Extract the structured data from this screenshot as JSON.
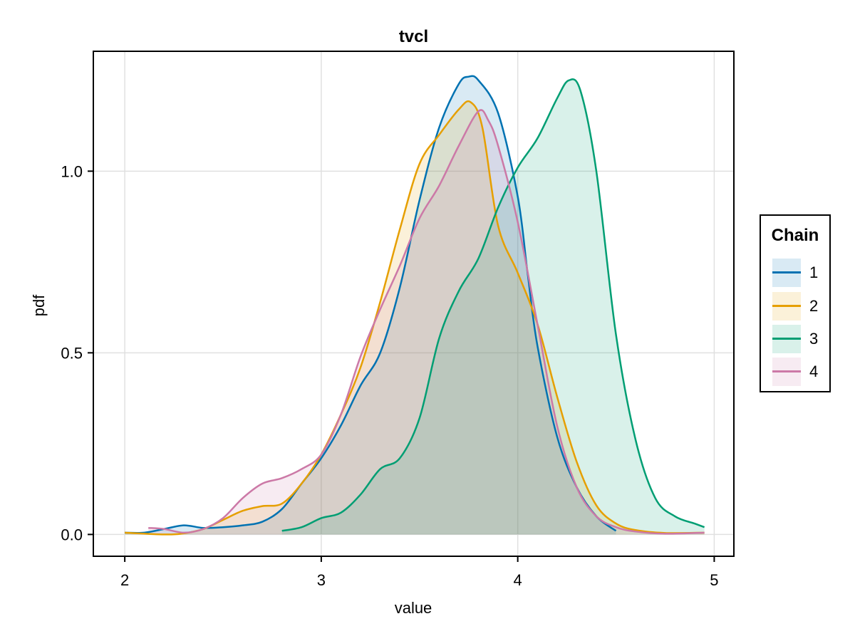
{
  "chart_data": {
    "type": "area",
    "title": "tvcl",
    "xlabel": "value",
    "ylabel": "pdf",
    "xlim": [
      1.84,
      5.1
    ],
    "ylim": [
      -0.06,
      1.33
    ],
    "x_ticks": [
      "2",
      "3",
      "4",
      "5"
    ],
    "y_ticks": [
      "0.0",
      "0.5",
      "1.0"
    ],
    "grid": true,
    "legend": {
      "title": "Chain",
      "position": "right",
      "entries": [
        "1",
        "2",
        "3",
        "4"
      ]
    },
    "series": [
      {
        "name": "1",
        "color": "#0072b2",
        "fill": "rgba(0,114,178,0.15)",
        "points": [
          [
            2.0,
            0.005
          ],
          [
            2.1,
            0.005
          ],
          [
            2.2,
            0.015
          ],
          [
            2.3,
            0.025
          ],
          [
            2.4,
            0.018
          ],
          [
            2.5,
            0.02
          ],
          [
            2.6,
            0.025
          ],
          [
            2.7,
            0.035
          ],
          [
            2.8,
            0.07
          ],
          [
            2.9,
            0.14
          ],
          [
            3.0,
            0.21
          ],
          [
            3.1,
            0.3
          ],
          [
            3.2,
            0.41
          ],
          [
            3.3,
            0.5
          ],
          [
            3.4,
            0.68
          ],
          [
            3.5,
            0.92
          ],
          [
            3.6,
            1.12
          ],
          [
            3.7,
            1.24
          ],
          [
            3.75,
            1.26
          ],
          [
            3.8,
            1.25
          ],
          [
            3.9,
            1.16
          ],
          [
            4.0,
            0.93
          ],
          [
            4.05,
            0.72
          ],
          [
            4.1,
            0.52
          ],
          [
            4.2,
            0.27
          ],
          [
            4.3,
            0.13
          ],
          [
            4.4,
            0.05
          ],
          [
            4.5,
            0.01
          ]
        ]
      },
      {
        "name": "2",
        "color": "#e69f00",
        "fill": "rgba(230,159,0,0.15)",
        "points": [
          [
            2.0,
            0.005
          ],
          [
            2.2,
            0.0
          ],
          [
            2.3,
            0.003
          ],
          [
            2.4,
            0.015
          ],
          [
            2.5,
            0.04
          ],
          [
            2.6,
            0.065
          ],
          [
            2.7,
            0.078
          ],
          [
            2.8,
            0.085
          ],
          [
            2.9,
            0.14
          ],
          [
            3.0,
            0.22
          ],
          [
            3.1,
            0.33
          ],
          [
            3.2,
            0.46
          ],
          [
            3.3,
            0.64
          ],
          [
            3.4,
            0.84
          ],
          [
            3.5,
            1.02
          ],
          [
            3.6,
            1.1
          ],
          [
            3.7,
            1.17
          ],
          [
            3.76,
            1.19
          ],
          [
            3.82,
            1.12
          ],
          [
            3.9,
            0.85
          ],
          [
            4.0,
            0.72
          ],
          [
            4.1,
            0.58
          ],
          [
            4.2,
            0.38
          ],
          [
            4.3,
            0.2
          ],
          [
            4.4,
            0.08
          ],
          [
            4.5,
            0.03
          ],
          [
            4.6,
            0.012
          ],
          [
            4.75,
            0.004
          ],
          [
            4.95,
            0.005
          ]
        ]
      },
      {
        "name": "3",
        "color": "#009e73",
        "fill": "rgba(0,158,115,0.15)",
        "points": [
          [
            2.8,
            0.01
          ],
          [
            2.9,
            0.02
          ],
          [
            3.0,
            0.045
          ],
          [
            3.1,
            0.06
          ],
          [
            3.2,
            0.11
          ],
          [
            3.3,
            0.18
          ],
          [
            3.4,
            0.21
          ],
          [
            3.5,
            0.32
          ],
          [
            3.6,
            0.54
          ],
          [
            3.7,
            0.67
          ],
          [
            3.8,
            0.76
          ],
          [
            3.9,
            0.9
          ],
          [
            4.0,
            1.01
          ],
          [
            4.1,
            1.09
          ],
          [
            4.2,
            1.2
          ],
          [
            4.26,
            1.25
          ],
          [
            4.32,
            1.22
          ],
          [
            4.4,
            1.0
          ],
          [
            4.5,
            0.55
          ],
          [
            4.6,
            0.26
          ],
          [
            4.7,
            0.1
          ],
          [
            4.8,
            0.05
          ],
          [
            4.9,
            0.03
          ],
          [
            4.95,
            0.02
          ]
        ]
      },
      {
        "name": "4",
        "color": "#cc79a7",
        "fill": "rgba(204,121,167,0.15)",
        "points": [
          [
            2.12,
            0.018
          ],
          [
            2.2,
            0.015
          ],
          [
            2.3,
            0.005
          ],
          [
            2.4,
            0.015
          ],
          [
            2.5,
            0.045
          ],
          [
            2.6,
            0.1
          ],
          [
            2.7,
            0.14
          ],
          [
            2.8,
            0.155
          ],
          [
            2.9,
            0.18
          ],
          [
            3.0,
            0.22
          ],
          [
            3.1,
            0.33
          ],
          [
            3.2,
            0.49
          ],
          [
            3.3,
            0.62
          ],
          [
            3.4,
            0.74
          ],
          [
            3.5,
            0.87
          ],
          [
            3.6,
            0.96
          ],
          [
            3.7,
            1.07
          ],
          [
            3.8,
            1.165
          ],
          [
            3.85,
            1.14
          ],
          [
            3.9,
            1.07
          ],
          [
            4.0,
            0.86
          ],
          [
            4.1,
            0.58
          ],
          [
            4.2,
            0.3
          ],
          [
            4.3,
            0.13
          ],
          [
            4.4,
            0.05
          ],
          [
            4.5,
            0.02
          ],
          [
            4.6,
            0.008
          ],
          [
            4.75,
            0.002
          ],
          [
            4.95,
            0.005
          ]
        ]
      }
    ]
  },
  "legend": {
    "title": "Chain",
    "items": [
      {
        "label": "1",
        "color": "#0072b2",
        "fill": "rgba(0,114,178,0.15)"
      },
      {
        "label": "2",
        "color": "#e69f00",
        "fill": "rgba(230,159,0,0.15)"
      },
      {
        "label": "3",
        "color": "#009e73",
        "fill": "rgba(0,158,115,0.15)"
      },
      {
        "label": "4",
        "color": "#cc79a7",
        "fill": "rgba(204,121,167,0.15)"
      }
    ]
  }
}
